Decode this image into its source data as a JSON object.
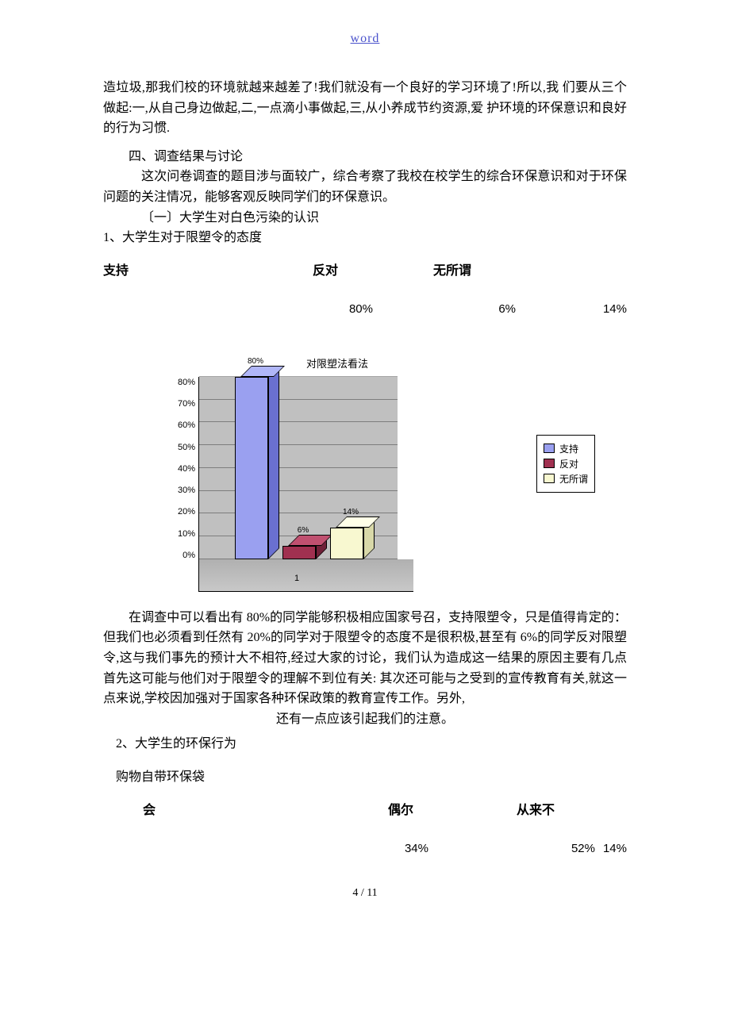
{
  "header": {
    "link": "word"
  },
  "para1": "造垃圾,那我们校的环境就越来越差了!我们就没有一个良好的学习环境了!所以,我 们要从三个做起:一,从自己身边做起,二,一点滴小事做起,三,从小养成节约资源,爱 护环境的环保意识和良好的行为习惯.",
  "section4_title": "四、调查结果与讨论",
  "section4_body": "这次问卷调查的题目涉与面较广，综合考察了我校在校学生的综合环保意识和对于环保问题的关注情况，能够客观反映同学们的环保意识。",
  "sub1": "〔一〕大学生对白色污染的认识",
  "item1": "1、大学生对于限塑令的态度",
  "table1": {
    "headers": [
      "支持",
      "反对",
      "无所谓"
    ],
    "values": [
      "80%",
      "6%",
      "14%"
    ]
  },
  "chart": {
    "title": "对限塑法看法",
    "ylabels": [
      "80%",
      "70%",
      "60%",
      "50%",
      "40%",
      "30%",
      "20%",
      "10%",
      "0%"
    ],
    "ymax": 80,
    "grid_step": 10,
    "xlabel": "1",
    "bars": [
      {
        "label": "支持",
        "value": 80,
        "pct_label": "80%",
        "color_front": "#9aa0f0",
        "color_top": "#b0b6f8",
        "color_side": "#6a70d0"
      },
      {
        "label": "反对",
        "value": 6,
        "pct_label": "6%",
        "color_front": "#a03050",
        "color_top": "#c05070",
        "color_side": "#702038"
      },
      {
        "label": "无所谓",
        "value": 14,
        "pct_label": "14%",
        "color_front": "#f8f8d0",
        "color_top": "#ffffe8",
        "color_side": "#d8d8a8"
      }
    ],
    "legend": [
      {
        "label": "支持",
        "color": "#9aa0f0"
      },
      {
        "label": "反对",
        "color": "#a03050"
      },
      {
        "label": "无所谓",
        "color": "#f8f8d0"
      }
    ],
    "bg_wall": "#c0c0c0"
  },
  "para2_lines": [
    "在调查中可以看出有 80%的同学能够积极相应国家号召，支持限塑令，只是值得肯定的：但我们也必须看到任然有 20%的同学对于限塑令的态度不是很积极,甚至有 6%的同学反对限塑令,这与我们事先的预计大不相符,经过大家的讨论，我们认为造成这一结果的原因主要有几点首先这可能与他们对于限塑令的理解不到位有关: 其次还可能与之受到的宣传教育有关,就这一点来说,学校因加强对于国家各种环保政策的教育宣传工作。另外,",
    "还有一点应该引起我们的注意。"
  ],
  "item2": "2、大学生的环保行为",
  "sub_q": "购物自带环保袋",
  "table2": {
    "headers": [
      "会",
      "偶尔",
      "从来不"
    ],
    "values": [
      "34%",
      "52%",
      "14%"
    ]
  },
  "footer": "4 / 11"
}
